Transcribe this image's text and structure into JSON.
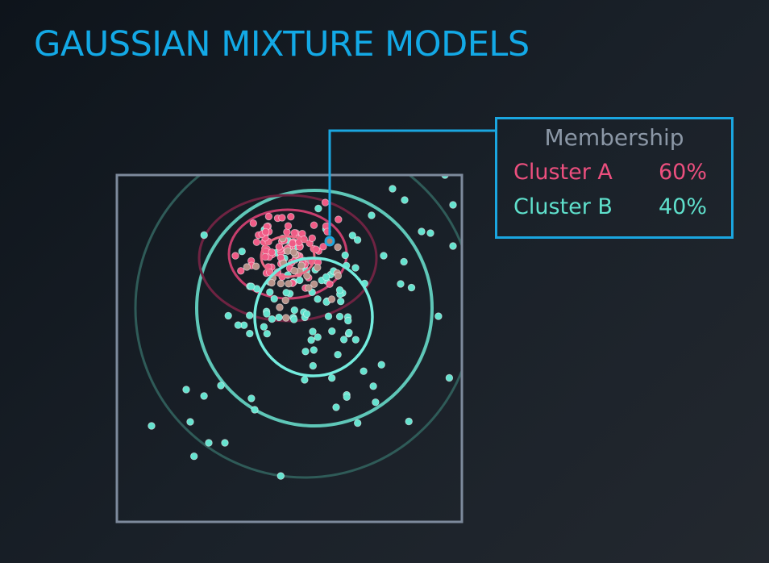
{
  "title": "GAUSSIAN MIXTURE MODELS",
  "membership": {
    "header": "Membership",
    "rows": [
      {
        "cluster": "Cluster A",
        "percent": "60%",
        "color": "#ec4f7e"
      },
      {
        "cluster": "Cluster B",
        "percent": "40%",
        "color": "#5fe0cc"
      }
    ]
  },
  "colors": {
    "title": "#13a9e6",
    "highlight": "#1aa6e0",
    "cluster_a": "#ec4f7e",
    "cluster_b": "#5fe0cc",
    "plot_frame": "#7d8a9c"
  }
}
